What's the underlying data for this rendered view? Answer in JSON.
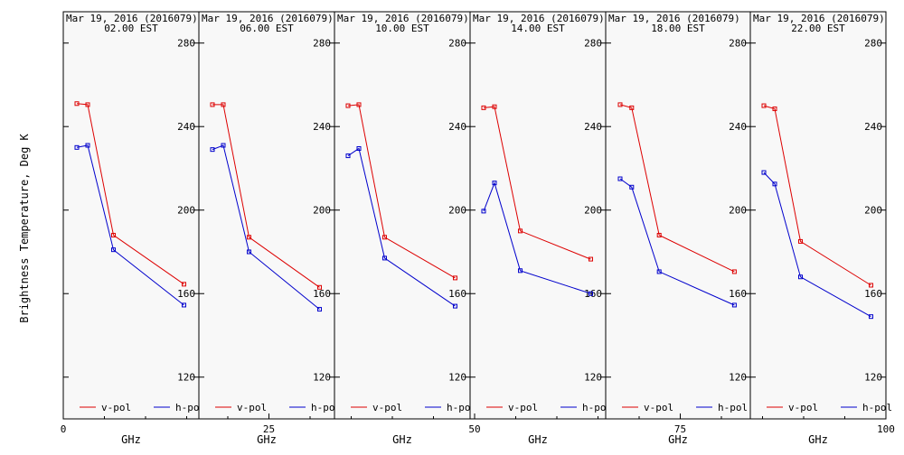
{
  "chart_data": {
    "type": "line",
    "ylabel": "Brightness Temperature, Deg K",
    "xlabel": "GHz",
    "xlim": [
      0,
      100
    ],
    "ylim": [
      100,
      295
    ],
    "xticks": [
      0,
      25,
      50,
      75,
      100
    ],
    "yticks": [
      120,
      160,
      200,
      240,
      280
    ],
    "x_tick_labels": [
      "0",
      "25",
      "50",
      "75",
      "100"
    ],
    "y_tick_labels": [
      "120",
      "160",
      "200",
      "240",
      "280"
    ],
    "x": [
      10,
      18,
      37,
      89
    ],
    "colors": {
      "v_pol": "#dd0000",
      "h_pol": "#0000cc"
    },
    "panels": [
      {
        "title": "Mar 19, 2016 (2016079)",
        "subtitle": "02.00 EST",
        "series": [
          {
            "name": "v-pol",
            "values": [
              251,
              250.5,
              188,
              164.5
            ]
          },
          {
            "name": "h-pol",
            "values": [
              230,
              231,
              181,
              154.5
            ]
          }
        ]
      },
      {
        "title": "Mar 19, 2016 (2016079)",
        "subtitle": "06.00 EST",
        "series": [
          {
            "name": "v-pol",
            "values": [
              250.5,
              250.5,
              187,
              163
            ]
          },
          {
            "name": "h-pol",
            "values": [
              229,
              231,
              180,
              152.5
            ]
          }
        ]
      },
      {
        "title": "Mar 19, 2016 (2016079)",
        "subtitle": "10.00 EST",
        "series": [
          {
            "name": "v-pol",
            "values": [
              250,
              250.5,
              187,
              167.5
            ]
          },
          {
            "name": "h-pol",
            "values": [
              226,
              229.5,
              177,
              154
            ]
          }
        ]
      },
      {
        "title": "Mar 19, 2016 (2016079)",
        "subtitle": "14.00 EST",
        "series": [
          {
            "name": "v-pol",
            "values": [
              249,
              249.5,
              190,
              176.5
            ]
          },
          {
            "name": "h-pol",
            "values": [
              199.5,
              213,
              171,
              160
            ]
          }
        ]
      },
      {
        "title": "Mar 19, 2016 (2016079)",
        "subtitle": "18.00 EST",
        "series": [
          {
            "name": "v-pol",
            "values": [
              250.5,
              249,
              188,
              170.5
            ]
          },
          {
            "name": "h-pol",
            "values": [
              215,
              211,
              170.5,
              154.5
            ]
          }
        ]
      },
      {
        "title": "Mar 19, 2016 (2016079)",
        "subtitle": "22.00 EST",
        "series": [
          {
            "name": "v-pol",
            "values": [
              250,
              248.5,
              185,
              164
            ]
          },
          {
            "name": "h-pol",
            "values": [
              218,
              212.5,
              168,
              149
            ]
          }
        ]
      }
    ]
  }
}
